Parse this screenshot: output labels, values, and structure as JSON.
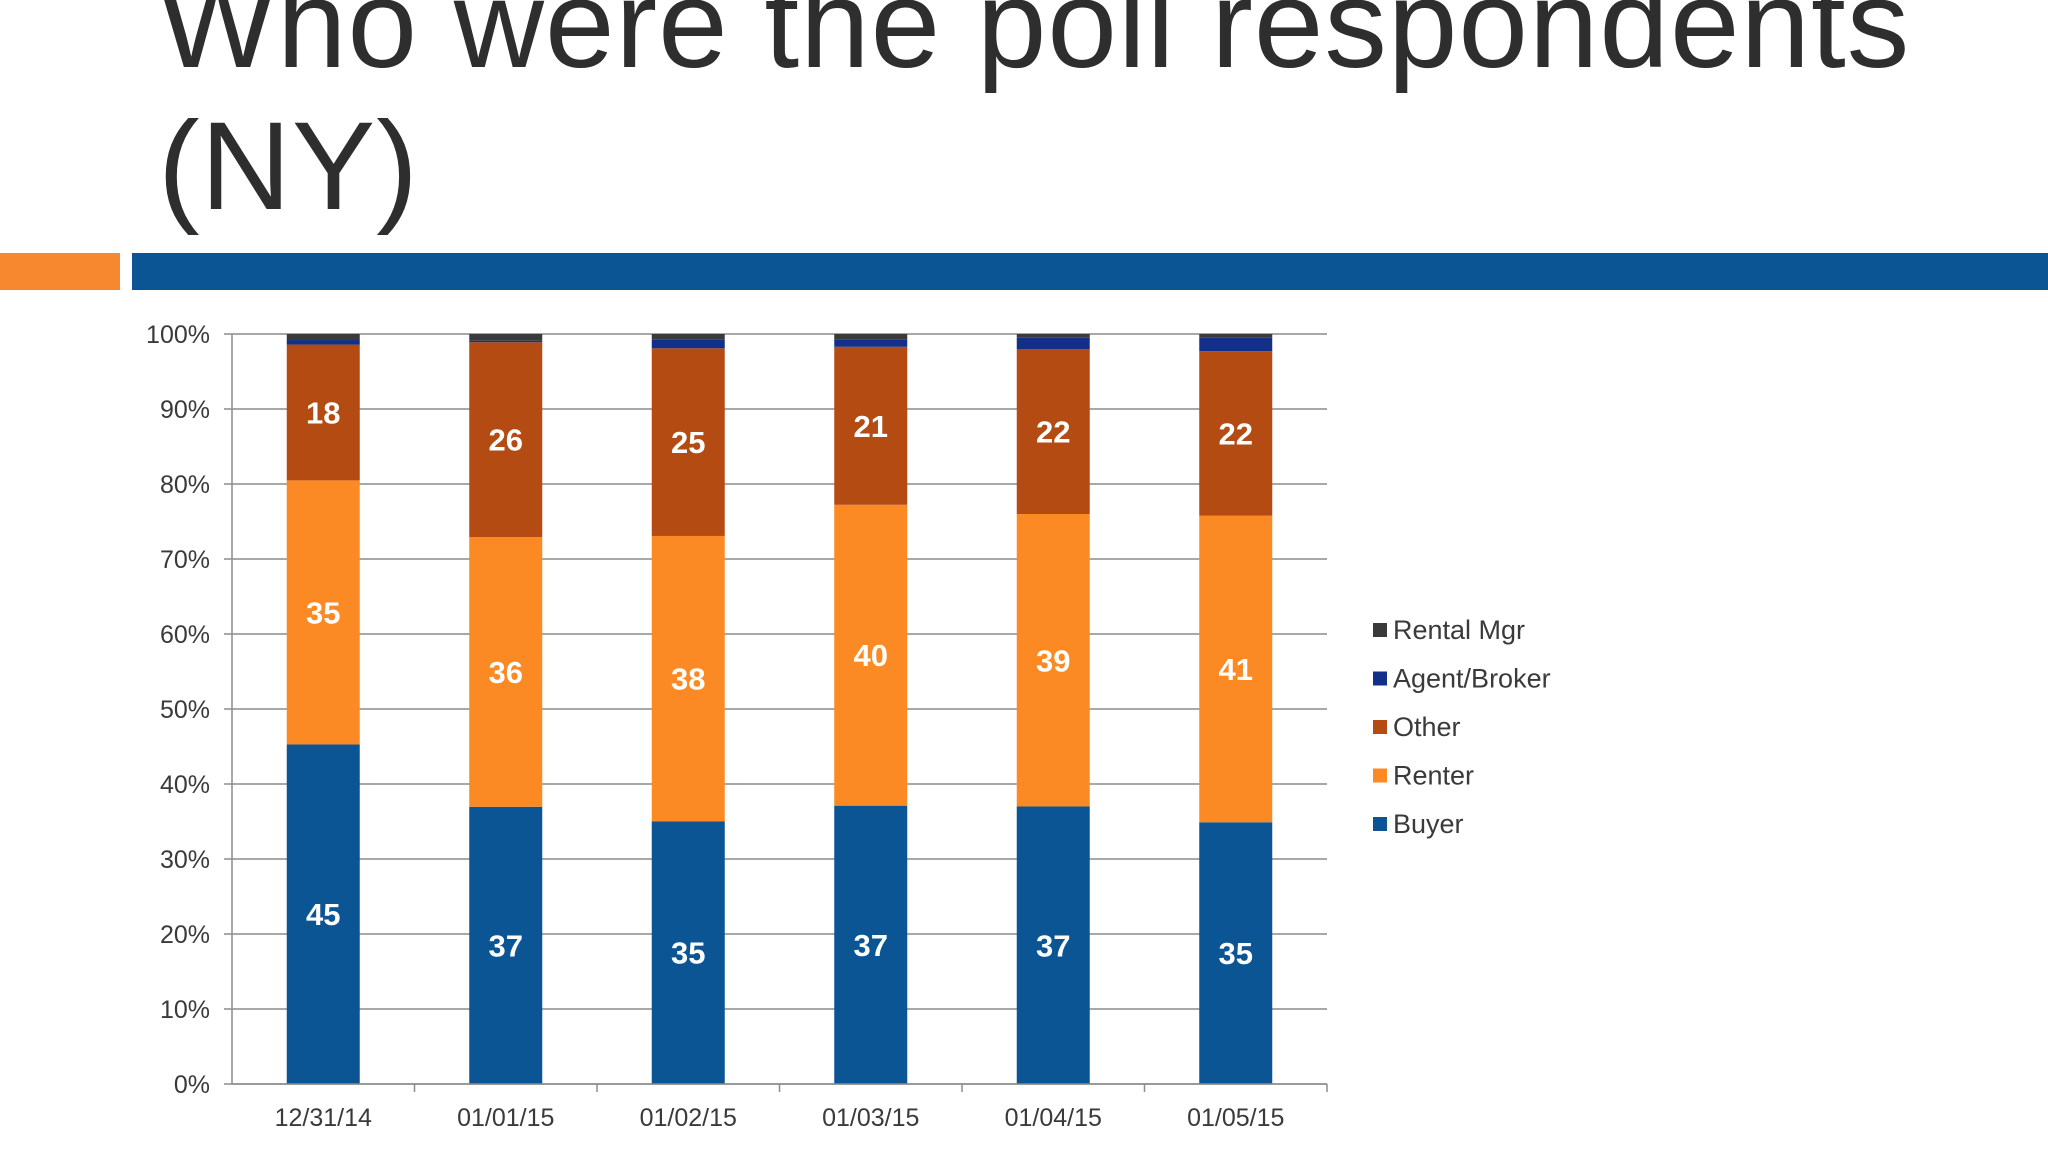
{
  "slide": {
    "title_line1": "Who were the poll respondents",
    "title_line2": "(NY)"
  },
  "colors": {
    "accent_orange": "#f7882f",
    "accent_blue": "#0b5595"
  },
  "chart_data": {
    "type": "bar",
    "stacked": "percent",
    "categories": [
      "12/31/14",
      "01/01/15",
      "01/02/15",
      "01/03/15",
      "01/04/15",
      "01/05/15"
    ],
    "series": [
      {
        "name": "Buyer",
        "color": "#0b5595",
        "values": [
          45,
          37,
          35,
          37,
          37,
          35
        ]
      },
      {
        "name": "Renter",
        "color": "#fb8a24",
        "values": [
          35,
          36,
          38,
          40,
          39,
          41
        ]
      },
      {
        "name": "Other",
        "color": "#b34b12",
        "values": [
          18,
          26,
          25,
          21,
          22,
          22
        ]
      },
      {
        "name": "Agent/Broker",
        "color": "#12308a",
        "values": [
          0.6,
          0.2,
          1.2,
          1.0,
          1.5,
          1.8
        ]
      },
      {
        "name": "Rental Mgr",
        "color": "#3a3a3a",
        "values": [
          0.8,
          0.9,
          0.7,
          0.7,
          0.5,
          0.5
        ]
      }
    ],
    "data_labels": [
      [
        45,
        37,
        35,
        37,
        37,
        35
      ],
      [
        35,
        36,
        38,
        40,
        39,
        41
      ],
      [
        18,
        26,
        25,
        21,
        22,
        22
      ]
    ],
    "ylim": [
      0,
      100
    ],
    "yticks": [
      "0%",
      "10%",
      "20%",
      "30%",
      "40%",
      "50%",
      "60%",
      "70%",
      "80%",
      "90%",
      "100%"
    ],
    "grid": true,
    "legend": {
      "position": "right",
      "order": [
        "Rental Mgr",
        "Agent/Broker",
        "Other",
        "Renter",
        "Buyer"
      ]
    }
  }
}
